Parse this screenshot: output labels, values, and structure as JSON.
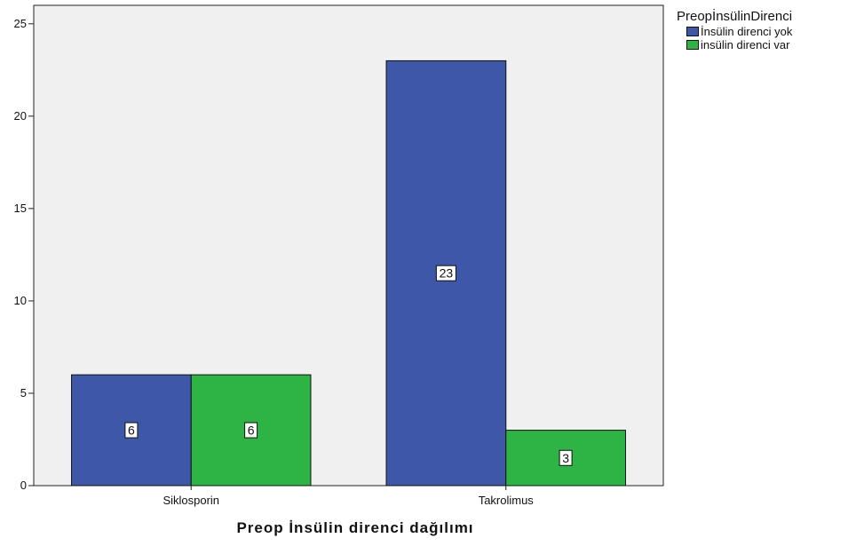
{
  "chart_data": {
    "type": "bar",
    "title": "",
    "xlabel": "Preop İnsülin direnci dağılımı",
    "ylabel": "",
    "categories": [
      "Siklosporin",
      "Takrolimus"
    ],
    "series": [
      {
        "name": "İnsülin direnci yok",
        "values": [
          6,
          23
        ],
        "color": "#3F57A8"
      },
      {
        "name": "insülin direnci var",
        "values": [
          6,
          3
        ],
        "color": "#2DB444"
      }
    ],
    "ylim": [
      0,
      26
    ],
    "yticks": [
      0,
      5,
      10,
      15,
      20,
      25
    ],
    "grid": false,
    "legend": {
      "title": "PreopİnsülinDirenci",
      "position": "right"
    },
    "data_labels": true,
    "plot_background": "#F0F0F0"
  }
}
